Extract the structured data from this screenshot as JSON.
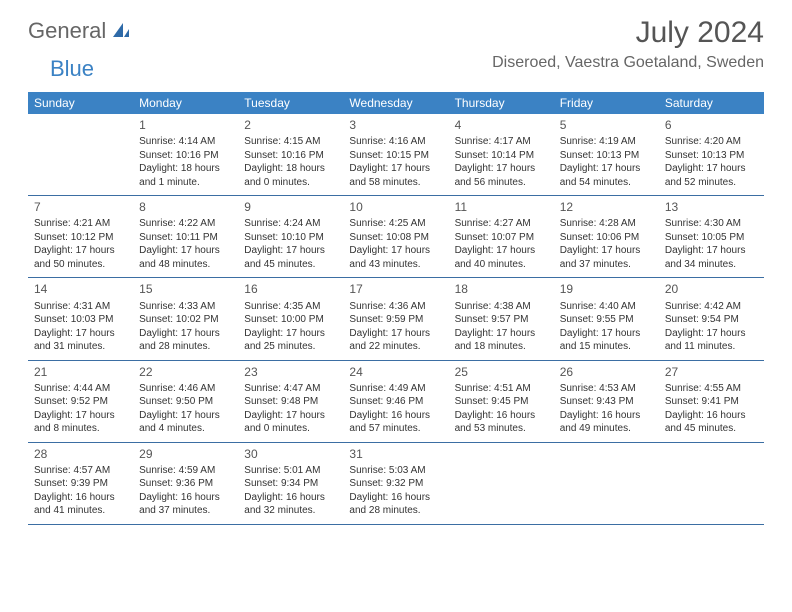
{
  "logo": {
    "text1": "General",
    "text2": "Blue"
  },
  "title": "July 2024",
  "location": "Diseroed, Vaestra Goetaland, Sweden",
  "colors": {
    "header_bg": "#3b82c4",
    "header_text": "#ffffff",
    "rule": "#3b6ea3",
    "body_text": "#333333",
    "title_text": "#555555"
  },
  "weekdays": [
    "Sunday",
    "Monday",
    "Tuesday",
    "Wednesday",
    "Thursday",
    "Friday",
    "Saturday"
  ],
  "weeks": [
    [
      null,
      {
        "n": "1",
        "sr": "Sunrise: 4:14 AM",
        "ss": "Sunset: 10:16 PM",
        "dl": "Daylight: 18 hours and 1 minute."
      },
      {
        "n": "2",
        "sr": "Sunrise: 4:15 AM",
        "ss": "Sunset: 10:16 PM",
        "dl": "Daylight: 18 hours and 0 minutes."
      },
      {
        "n": "3",
        "sr": "Sunrise: 4:16 AM",
        "ss": "Sunset: 10:15 PM",
        "dl": "Daylight: 17 hours and 58 minutes."
      },
      {
        "n": "4",
        "sr": "Sunrise: 4:17 AM",
        "ss": "Sunset: 10:14 PM",
        "dl": "Daylight: 17 hours and 56 minutes."
      },
      {
        "n": "5",
        "sr": "Sunrise: 4:19 AM",
        "ss": "Sunset: 10:13 PM",
        "dl": "Daylight: 17 hours and 54 minutes."
      },
      {
        "n": "6",
        "sr": "Sunrise: 4:20 AM",
        "ss": "Sunset: 10:13 PM",
        "dl": "Daylight: 17 hours and 52 minutes."
      }
    ],
    [
      {
        "n": "7",
        "sr": "Sunrise: 4:21 AM",
        "ss": "Sunset: 10:12 PM",
        "dl": "Daylight: 17 hours and 50 minutes."
      },
      {
        "n": "8",
        "sr": "Sunrise: 4:22 AM",
        "ss": "Sunset: 10:11 PM",
        "dl": "Daylight: 17 hours and 48 minutes."
      },
      {
        "n": "9",
        "sr": "Sunrise: 4:24 AM",
        "ss": "Sunset: 10:10 PM",
        "dl": "Daylight: 17 hours and 45 minutes."
      },
      {
        "n": "10",
        "sr": "Sunrise: 4:25 AM",
        "ss": "Sunset: 10:08 PM",
        "dl": "Daylight: 17 hours and 43 minutes."
      },
      {
        "n": "11",
        "sr": "Sunrise: 4:27 AM",
        "ss": "Sunset: 10:07 PM",
        "dl": "Daylight: 17 hours and 40 minutes."
      },
      {
        "n": "12",
        "sr": "Sunrise: 4:28 AM",
        "ss": "Sunset: 10:06 PM",
        "dl": "Daylight: 17 hours and 37 minutes."
      },
      {
        "n": "13",
        "sr": "Sunrise: 4:30 AM",
        "ss": "Sunset: 10:05 PM",
        "dl": "Daylight: 17 hours and 34 minutes."
      }
    ],
    [
      {
        "n": "14",
        "sr": "Sunrise: 4:31 AM",
        "ss": "Sunset: 10:03 PM",
        "dl": "Daylight: 17 hours and 31 minutes."
      },
      {
        "n": "15",
        "sr": "Sunrise: 4:33 AM",
        "ss": "Sunset: 10:02 PM",
        "dl": "Daylight: 17 hours and 28 minutes."
      },
      {
        "n": "16",
        "sr": "Sunrise: 4:35 AM",
        "ss": "Sunset: 10:00 PM",
        "dl": "Daylight: 17 hours and 25 minutes."
      },
      {
        "n": "17",
        "sr": "Sunrise: 4:36 AM",
        "ss": "Sunset: 9:59 PM",
        "dl": "Daylight: 17 hours and 22 minutes."
      },
      {
        "n": "18",
        "sr": "Sunrise: 4:38 AM",
        "ss": "Sunset: 9:57 PM",
        "dl": "Daylight: 17 hours and 18 minutes."
      },
      {
        "n": "19",
        "sr": "Sunrise: 4:40 AM",
        "ss": "Sunset: 9:55 PM",
        "dl": "Daylight: 17 hours and 15 minutes."
      },
      {
        "n": "20",
        "sr": "Sunrise: 4:42 AM",
        "ss": "Sunset: 9:54 PM",
        "dl": "Daylight: 17 hours and 11 minutes."
      }
    ],
    [
      {
        "n": "21",
        "sr": "Sunrise: 4:44 AM",
        "ss": "Sunset: 9:52 PM",
        "dl": "Daylight: 17 hours and 8 minutes."
      },
      {
        "n": "22",
        "sr": "Sunrise: 4:46 AM",
        "ss": "Sunset: 9:50 PM",
        "dl": "Daylight: 17 hours and 4 minutes."
      },
      {
        "n": "23",
        "sr": "Sunrise: 4:47 AM",
        "ss": "Sunset: 9:48 PM",
        "dl": "Daylight: 17 hours and 0 minutes."
      },
      {
        "n": "24",
        "sr": "Sunrise: 4:49 AM",
        "ss": "Sunset: 9:46 PM",
        "dl": "Daylight: 16 hours and 57 minutes."
      },
      {
        "n": "25",
        "sr": "Sunrise: 4:51 AM",
        "ss": "Sunset: 9:45 PM",
        "dl": "Daylight: 16 hours and 53 minutes."
      },
      {
        "n": "26",
        "sr": "Sunrise: 4:53 AM",
        "ss": "Sunset: 9:43 PM",
        "dl": "Daylight: 16 hours and 49 minutes."
      },
      {
        "n": "27",
        "sr": "Sunrise: 4:55 AM",
        "ss": "Sunset: 9:41 PM",
        "dl": "Daylight: 16 hours and 45 minutes."
      }
    ],
    [
      {
        "n": "28",
        "sr": "Sunrise: 4:57 AM",
        "ss": "Sunset: 9:39 PM",
        "dl": "Daylight: 16 hours and 41 minutes."
      },
      {
        "n": "29",
        "sr": "Sunrise: 4:59 AM",
        "ss": "Sunset: 9:36 PM",
        "dl": "Daylight: 16 hours and 37 minutes."
      },
      {
        "n": "30",
        "sr": "Sunrise: 5:01 AM",
        "ss": "Sunset: 9:34 PM",
        "dl": "Daylight: 16 hours and 32 minutes."
      },
      {
        "n": "31",
        "sr": "Sunrise: 5:03 AM",
        "ss": "Sunset: 9:32 PM",
        "dl": "Daylight: 16 hours and 28 minutes."
      },
      null,
      null,
      null
    ]
  ]
}
